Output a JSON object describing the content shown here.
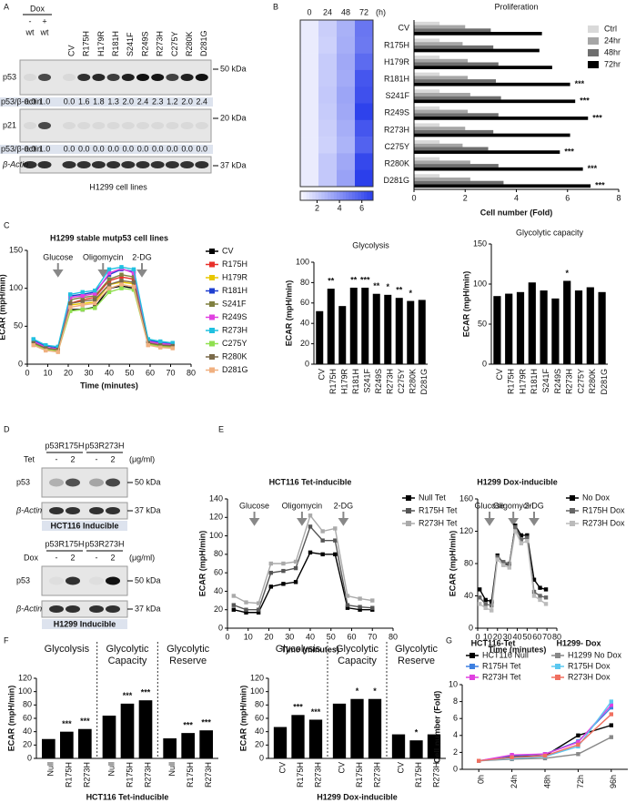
{
  "panels": [
    "A",
    "B",
    "C",
    "D",
    "E",
    "F",
    "G"
  ],
  "blot_a": {
    "treatment_label": "Dox",
    "treatments": [
      "-",
      "+"
    ],
    "lanes": [
      "wt",
      "wt",
      "CV",
      "R175H",
      "H179R",
      "R181H",
      "S241F",
      "R249S",
      "R273H",
      "C275Y",
      "R280K",
      "D281G"
    ],
    "rows": [
      {
        "label": "p53",
        "marker": "50 kDa"
      },
      {
        "label": "p21",
        "marker": "20 kDa"
      },
      {
        "label": "β-Actin",
        "marker": "37 kDa"
      }
    ],
    "ratio_labels": [
      "p53/β-actin",
      "p53/β-actin"
    ],
    "ratios": [
      [
        "0.0",
        "1.0",
        "0.0",
        "1.6",
        "1.8",
        "1.3",
        "2.0",
        "2.4",
        "2.3",
        "1.2",
        "2.0",
        "2.4"
      ],
      [
        "0.0",
        "1.0",
        "0.0",
        "0.0",
        "0.0",
        "0.0",
        "0.0",
        "0.0",
        "0.0",
        "0.0",
        "0.0",
        "0.0"
      ]
    ],
    "caption": "H1299 cell lines"
  },
  "blot_d": [
    {
      "headers": [
        "p53R175H",
        "p53R273H"
      ],
      "treatment_label": "Tet",
      "levels": [
        "-",
        "2",
        "-",
        "2"
      ],
      "unit": "(μg/ml)",
      "rows": [
        {
          "label": "p53",
          "marker": "50 kDa"
        },
        {
          "label": "β-Actin",
          "marker": "37 kDa"
        }
      ],
      "caption": "HCT116 Inducible"
    },
    {
      "headers": [
        "p53R175H",
        "p53R273H"
      ],
      "treatment_label": "Dox",
      "levels": [
        "-",
        "2",
        "-",
        "2"
      ],
      "unit": "(μg/ml)",
      "rows": [
        {
          "label": "p53",
          "marker": "50 kDa"
        },
        {
          "label": "β-Actin",
          "marker": "37 kDa"
        }
      ],
      "caption": "H1299 Inducible"
    }
  ],
  "chart_data": [
    {
      "type": "heatmap",
      "x": [
        "0",
        "24",
        "48",
        "72"
      ],
      "x_unit": "(h)",
      "clim": [
        0.5,
        7
      ],
      "cticks": [
        2,
        4,
        6
      ],
      "values": [
        [
          1.0,
          2.0,
          3.0,
          5.0
        ],
        [
          1.0,
          1.9,
          3.1,
          4.9
        ],
        [
          1.0,
          2.1,
          3.3,
          5.4
        ],
        [
          1.0,
          2.1,
          3.2,
          6.1
        ],
        [
          1.0,
          2.2,
          3.4,
          6.3
        ],
        [
          1.0,
          2.1,
          3.3,
          6.8
        ],
        [
          1.0,
          2.0,
          3.1,
          6.1
        ],
        [
          1.0,
          1.9,
          2.9,
          5.7
        ],
        [
          1.0,
          2.2,
          3.3,
          6.6
        ],
        [
          1.0,
          2.2,
          3.5,
          6.9
        ]
      ]
    },
    {
      "type": "hbar",
      "title": "Proliferation",
      "xlabel": "Cell number (Fold)",
      "xlim": [
        0,
        8
      ],
      "xticks": [
        0,
        2,
        4,
        6,
        8
      ],
      "categories": [
        "CV",
        "R175H",
        "H179R",
        "R181H",
        "S241F",
        "R249S",
        "R273H",
        "C275Y",
        "R280K",
        "D281G"
      ],
      "series": [
        {
          "name": "Ctrl",
          "color": "#d9d9d9",
          "values": [
            1.0,
            1.0,
            1.0,
            1.0,
            1.0,
            1.0,
            1.0,
            1.0,
            1.0,
            1.0
          ]
        },
        {
          "name": "24hr",
          "color": "#a6a6a6",
          "values": [
            2.0,
            1.9,
            2.1,
            2.1,
            2.2,
            2.1,
            2.0,
            1.9,
            2.2,
            2.2
          ]
        },
        {
          "name": "48hr",
          "color": "#6e6e6e",
          "values": [
            3.0,
            3.1,
            3.3,
            3.2,
            3.4,
            3.3,
            3.1,
            2.9,
            3.3,
            3.5
          ]
        },
        {
          "name": "72hr",
          "color": "#000000",
          "values": [
            5.0,
            4.9,
            5.4,
            6.1,
            6.3,
            6.8,
            6.1,
            5.7,
            6.6,
            6.9
          ]
        }
      ],
      "annotations": [
        null,
        null,
        null,
        "***",
        "***",
        "***",
        null,
        "***",
        "***",
        "***"
      ]
    },
    {
      "type": "line",
      "title": "H1299 stable mutp53 cell lines",
      "xlabel": "Time (minutes)",
      "ylabel": "ECAR (mpH/min)",
      "xlim": [
        0,
        80
      ],
      "xticks": [
        0,
        10,
        20,
        30,
        40,
        50,
        60,
        70,
        80
      ],
      "ylim": [
        0,
        150
      ],
      "yticks": [
        0,
        50,
        100,
        150
      ],
      "events": [
        {
          "text": "Glucose",
          "x": 15
        },
        {
          "text": "Oligomycin",
          "x": 37
        },
        {
          "text": "2-DG",
          "x": 56
        }
      ],
      "x": [
        3,
        9,
        15,
        21,
        27,
        33,
        40,
        46,
        52,
        59,
        65,
        71
      ],
      "series": [
        {
          "name": "CV",
          "color": "#000000",
          "values": [
            30,
            22,
            20,
            72,
            72,
            75,
            100,
            103,
            100,
            30,
            26,
            25
          ]
        },
        {
          "name": "R175H",
          "color": "#e8302a",
          "values": [
            28,
            20,
            19,
            80,
            85,
            88,
            110,
            115,
            112,
            28,
            25,
            24
          ]
        },
        {
          "name": "H179R",
          "color": "#e8c700",
          "values": [
            27,
            20,
            18,
            78,
            80,
            82,
            105,
            108,
            106,
            27,
            24,
            23
          ]
        },
        {
          "name": "R181H",
          "color": "#1f3fd0",
          "values": [
            32,
            24,
            22,
            90,
            92,
            95,
            118,
            125,
            122,
            32,
            28,
            27
          ]
        },
        {
          "name": "S241F",
          "color": "#808040",
          "values": [
            29,
            21,
            19,
            85,
            88,
            90,
            112,
            118,
            115,
            29,
            26,
            25
          ]
        },
        {
          "name": "R249S",
          "color": "#e040e0",
          "values": [
            30,
            22,
            20,
            88,
            90,
            93,
            120,
            126,
            120,
            30,
            27,
            26
          ]
        },
        {
          "name": "R273H",
          "color": "#20c0e0",
          "values": [
            33,
            25,
            23,
            92,
            95,
            97,
            125,
            128,
            125,
            33,
            30,
            28
          ]
        },
        {
          "name": "C275Y",
          "color": "#90e050",
          "values": [
            26,
            19,
            17,
            70,
            72,
            74,
            95,
            100,
            98,
            26,
            23,
            22
          ]
        },
        {
          "name": "R280K",
          "color": "#7a6a4a",
          "values": [
            28,
            21,
            19,
            80,
            83,
            85,
            105,
            110,
            108,
            28,
            25,
            24
          ]
        },
        {
          "name": "D281G",
          "color": "#f0b080",
          "values": [
            25,
            18,
            16,
            75,
            78,
            80,
            100,
            105,
            102,
            25,
            22,
            21
          ]
        }
      ]
    },
    {
      "type": "bar",
      "title": "Glycolysis",
      "ylabel": "ECAR (mpH/min)",
      "ylim": [
        0,
        100
      ],
      "yticks": [
        0,
        20,
        40,
        60,
        80,
        100
      ],
      "color": "#000000",
      "categories": [
        "CV",
        "R175H",
        "H179R",
        "R181H",
        "S241F",
        "R249S",
        "R273H",
        "C275Y",
        "R280K",
        "D281G"
      ],
      "values": [
        52,
        74,
        57,
        75,
        75,
        69,
        68,
        65,
        62,
        63
      ],
      "annotations": [
        null,
        "**",
        null,
        "**",
        "***",
        "**",
        "*",
        "**",
        "*",
        null
      ]
    },
    {
      "type": "bar",
      "title": "Glycolytic capacity",
      "ylabel": "ECAR (mpH/min)",
      "ylim": [
        0,
        150
      ],
      "yticks": [
        0,
        50,
        100,
        150
      ],
      "color": "#000000",
      "categories": [
        "CV",
        "R175H",
        "H179R",
        "R181H",
        "S241F",
        "R249S",
        "R273H",
        "C275Y",
        "R280K",
        "D281G"
      ],
      "values": [
        85,
        88,
        90,
        102,
        92,
        82,
        104,
        92,
        96,
        90
      ],
      "annotations": [
        null,
        null,
        null,
        null,
        null,
        null,
        "*",
        null,
        null,
        null
      ]
    },
    {
      "type": "line",
      "title": "HCT116 Tet-inducible",
      "xlabel": "Time (minutes)",
      "ylabel": "ECAR (mpH/min)",
      "xlim": [
        0,
        80
      ],
      "xticks": [
        0,
        10,
        20,
        30,
        40,
        50,
        60,
        70,
        80
      ],
      "ylim": [
        0,
        140
      ],
      "yticks": [
        0,
        20,
        40,
        60,
        80,
        100,
        120,
        140
      ],
      "events": [
        {
          "text": "Glucose",
          "x": 13
        },
        {
          "text": "Oligomycin",
          "x": 36
        },
        {
          "text": "2-DG",
          "x": 56
        }
      ],
      "x": [
        3,
        9,
        15,
        21,
        27,
        33,
        40,
        46,
        52,
        58,
        64,
        70
      ],
      "series": [
        {
          "name": "Null Tet",
          "color": "#000000",
          "values": [
            20,
            17,
            17,
            45,
            48,
            50,
            82,
            80,
            80,
            22,
            20,
            20
          ]
        },
        {
          "name": "R175H Tet",
          "color": "#555555",
          "values": [
            25,
            20,
            20,
            60,
            62,
            65,
            110,
            95,
            95,
            25,
            23,
            22
          ]
        },
        {
          "name": "R273H Tet",
          "color": "#aaaaaa",
          "values": [
            35,
            28,
            27,
            70,
            70,
            72,
            122,
            105,
            108,
            35,
            32,
            30
          ]
        }
      ]
    },
    {
      "type": "line",
      "title": "H1299 Dox-inducible",
      "xlabel": "Time (minutes)",
      "ylabel": "ECAR (mpH/min)",
      "xlim": [
        0,
        80
      ],
      "xticks": [
        0,
        10,
        20,
        30,
        40,
        50,
        60,
        70,
        80
      ],
      "ylim": [
        0,
        160
      ],
      "yticks": [
        0,
        40,
        80,
        120,
        160
      ],
      "events": [
        {
          "text": "Glucose",
          "x": 12
        },
        {
          "text": "Oligomycin",
          "x": 36
        },
        {
          "text": "2-DG",
          "x": 57
        }
      ],
      "x": [
        2,
        8,
        14,
        20,
        26,
        32,
        38,
        44,
        50,
        57,
        63,
        69
      ],
      "series": [
        {
          "name": "No Dox",
          "color": "#000000",
          "values": [
            48,
            35,
            33,
            90,
            80,
            78,
            127,
            115,
            115,
            60,
            50,
            48
          ]
        },
        {
          "name": "R175H Dox",
          "color": "#666666",
          "values": [
            38,
            30,
            28,
            88,
            82,
            80,
            125,
            110,
            112,
            45,
            40,
            38
          ]
        },
        {
          "name": "R273H Dox",
          "color": "#bbbbbb",
          "values": [
            30,
            25,
            22,
            85,
            78,
            75,
            120,
            105,
            108,
            40,
            35,
            30
          ]
        }
      ]
    },
    {
      "type": "grouped_bar",
      "xlabel": "HCT116 Tet-inducible",
      "ylabel": "ECAR (mpH/min)",
      "ylim": [
        0,
        120
      ],
      "yticks": [
        0,
        20,
        40,
        60,
        80,
        100,
        120
      ],
      "color": "#000000",
      "groups": [
        {
          "name": "Glycolysis",
          "categories": [
            "Null",
            "R175H",
            "R273H"
          ],
          "values": [
            29,
            40,
            44
          ],
          "annotations": [
            null,
            "***",
            "***"
          ]
        },
        {
          "name": "Glycolytic Capacity",
          "categories": [
            "Null",
            "R175H",
            "R273H"
          ],
          "values": [
            64,
            82,
            87
          ],
          "annotations": [
            null,
            "***",
            "***"
          ]
        },
        {
          "name": "Glycolytic Reserve",
          "categories": [
            "Null",
            "R175H",
            "R273H"
          ],
          "values": [
            30,
            38,
            42
          ],
          "annotations": [
            null,
            "***",
            "***"
          ]
        }
      ]
    },
    {
      "type": "grouped_bar",
      "xlabel": "H1299 Dox-inducible",
      "ylabel": "ECAR (mpH/min)",
      "ylim": [
        0,
        120
      ],
      "yticks": [
        0,
        20,
        40,
        60,
        80,
        100,
        120
      ],
      "color": "#000000",
      "groups": [
        {
          "name": "Glycolysis",
          "categories": [
            "CV",
            "R175H",
            "R273H"
          ],
          "values": [
            47,
            65,
            58
          ],
          "annotations": [
            null,
            "***",
            "***"
          ]
        },
        {
          "name": "Glycolytic Capacity",
          "categories": [
            "CV",
            "R175H",
            "R273H"
          ],
          "values": [
            82,
            89,
            89
          ],
          "annotations": [
            null,
            "*",
            "*"
          ]
        },
        {
          "name": "Glycolytic Reserve",
          "categories": [
            "CV",
            "R175H",
            "R273H"
          ],
          "values": [
            36,
            27,
            36
          ],
          "annotations": [
            null,
            "*",
            null
          ]
        }
      ]
    },
    {
      "type": "line",
      "ylabel": "Cell number (Fold)",
      "ylim": [
        0,
        10
      ],
      "yticks": [
        0,
        2,
        4,
        6,
        8,
        10
      ],
      "legend_titles": [
        "HCT116-Tet",
        "H1299- Dox"
      ],
      "categories": [
        "0h",
        "24h",
        "48h",
        "72h",
        "96h"
      ],
      "series": [
        {
          "name": "HCT116 Null",
          "color": "#000000",
          "values": [
            1,
            1.5,
            1.6,
            4.0,
            5.2
          ]
        },
        {
          "name": "R175H Tet",
          "color": "#3d7fe0",
          "values": [
            1,
            1.6,
            1.8,
            3.3,
            7.3
          ]
        },
        {
          "name": "R273H Tet",
          "color": "#e040e0",
          "values": [
            1,
            1.7,
            1.8,
            3.2,
            7.6
          ]
        },
        {
          "name": "H1299 No Dox",
          "color": "#888888",
          "values": [
            1,
            1.2,
            1.3,
            1.8,
            3.8
          ]
        },
        {
          "name": "R175H Dox",
          "color": "#5bc8f0",
          "values": [
            1,
            1.3,
            1.5,
            2.7,
            8.0
          ]
        },
        {
          "name": "R273H Dox",
          "color": "#f07060",
          "values": [
            1,
            1.4,
            1.6,
            2.9,
            6.5
          ]
        }
      ]
    }
  ]
}
